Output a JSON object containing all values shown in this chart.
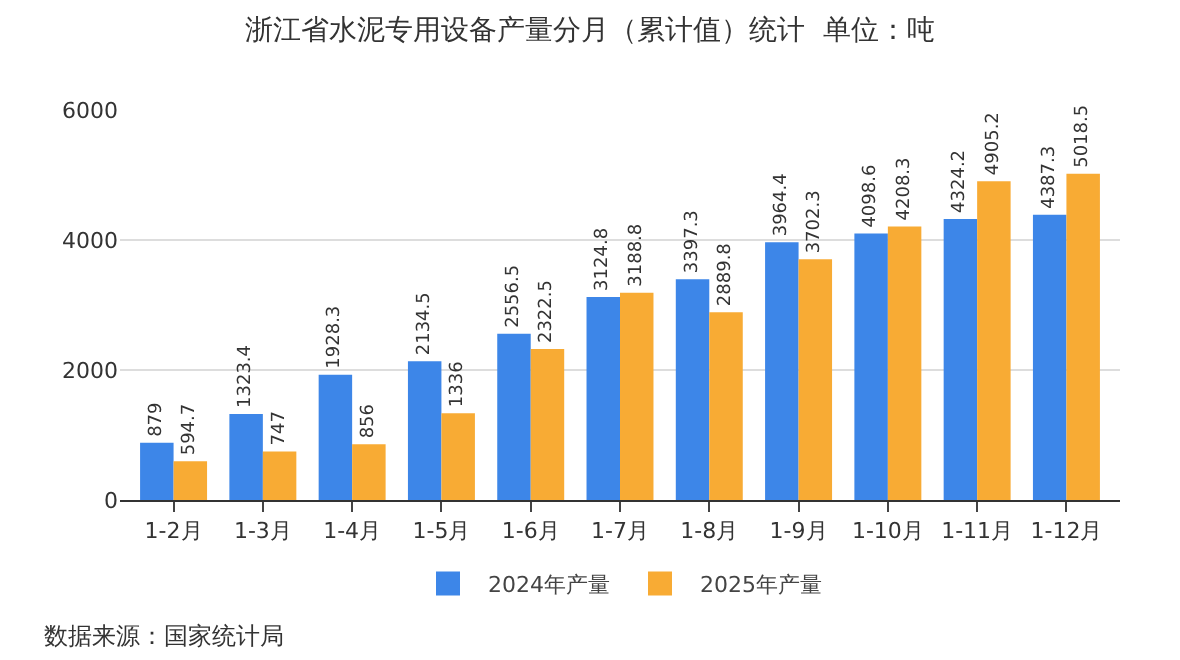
{
  "chart_data": {
    "type": "bar",
    "title": "浙江省水泥专用设备产量分月（累计值）统计  单位：吨",
    "categories": [
      "1-2月",
      "1-3月",
      "1-4月",
      "1-5月",
      "1-6月",
      "1-7月",
      "1-8月",
      "1-9月",
      "1-10月",
      "1-11月",
      "1-12月"
    ],
    "series": [
      {
        "name": "2024年产量",
        "color": "#3d86e8",
        "values": [
          879,
          1323.4,
          1928.3,
          2134.5,
          2556.5,
          3124.8,
          3397.3,
          3964.4,
          4098.6,
          4324.2,
          4387.3
        ]
      },
      {
        "name": "2025年产量",
        "color": "#f8ab34",
        "values": [
          594.7,
          747,
          856,
          1336,
          2322.5,
          3188.8,
          2889.8,
          3702.3,
          4208.3,
          4905.2,
          5018.5
        ]
      }
    ],
    "ylim": [
      0,
      6000
    ],
    "yticks": [
      0,
      2000,
      4000,
      6000
    ],
    "grid": "y",
    "legend": "bottom",
    "data_labels": true,
    "annotations": [
      "数据来源：国家统计局"
    ]
  }
}
